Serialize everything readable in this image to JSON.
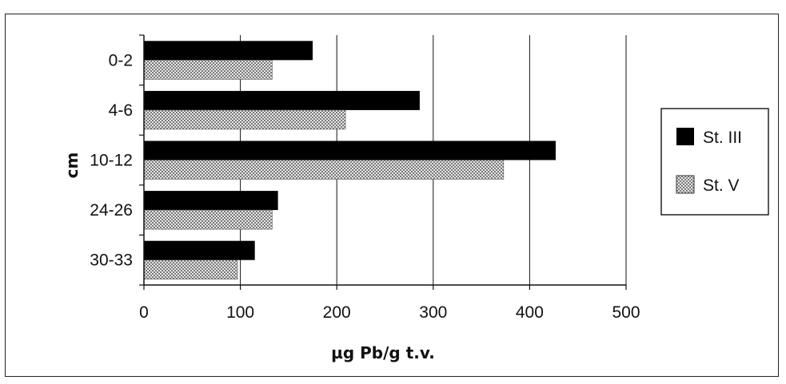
{
  "chart_data": {
    "type": "bar",
    "orientation": "horizontal",
    "categories": [
      "0-2",
      "4-6",
      "10-12",
      "24-26",
      "30-33"
    ],
    "series": [
      {
        "name": "St. III",
        "values": [
          175,
          286,
          427,
          139,
          115
        ],
        "color": "#000000",
        "pattern": "solid"
      },
      {
        "name": "St. V",
        "values": [
          133,
          209,
          373,
          133,
          97
        ],
        "color": "#9a9a9a",
        "pattern": "crosshatch"
      }
    ],
    "xlabel": "µg Pb/g t.v.",
    "ylabel": "cm",
    "xlim": [
      0,
      500
    ],
    "xticks": [
      0,
      100,
      200,
      300,
      400,
      500
    ],
    "grid": "vertical",
    "legend": "right"
  }
}
